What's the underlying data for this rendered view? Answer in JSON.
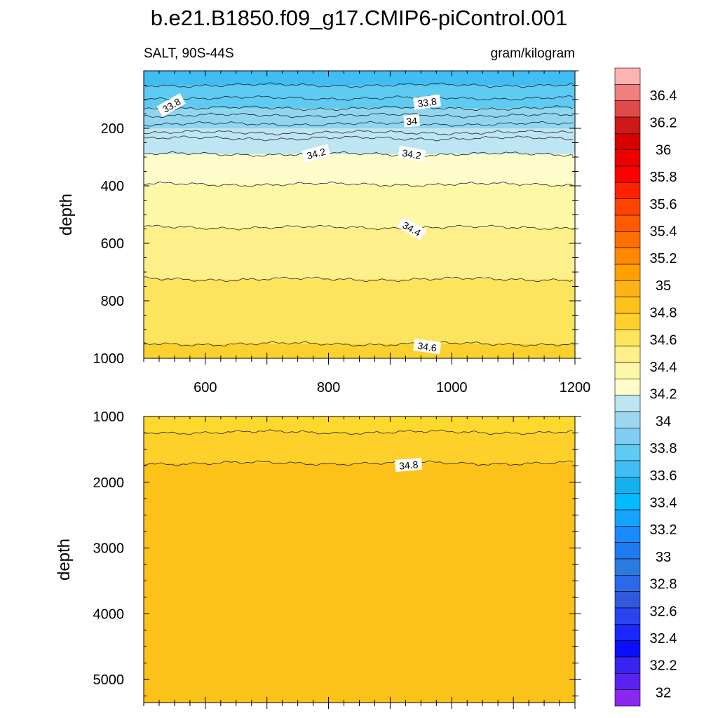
{
  "title": "b.e21.B1850.f09_g17.CMIP6-piControl.001",
  "variable_label": "SALT, 90S-44S",
  "units_label": "gram/kilogram",
  "chart_data": [
    {
      "type": "contour",
      "panel": "upper",
      "ylabel": "depth",
      "xlim": [
        500,
        1200
      ],
      "ylim": [
        0,
        1000
      ],
      "y_reversed": true,
      "x_ticks": [
        600,
        800,
        1000,
        1200
      ],
      "y_ticks": [
        200,
        400,
        600,
        800,
        1000
      ],
      "bands": [
        {
          "y0": 0,
          "y1": 50,
          "color": "#40bdf3"
        },
        {
          "y0": 50,
          "y1": 130,
          "color": "#5fcaf2"
        },
        {
          "y0": 130,
          "y1": 200,
          "color": "#91d6f0"
        },
        {
          "y0": 200,
          "y1": 290,
          "color": "#bde5f2"
        },
        {
          "y0": 290,
          "y1": 395,
          "color": "#fefccb"
        },
        {
          "y0": 395,
          "y1": 545,
          "color": "#fdf8a7"
        },
        {
          "y0": 545,
          "y1": 725,
          "color": "#fdf08a"
        },
        {
          "y0": 725,
          "y1": 950,
          "color": "#fde45d"
        },
        {
          "y0": 950,
          "y1": 1000,
          "color": "#fbd22d"
        }
      ],
      "contour_depths": [
        50,
        95,
        130,
        155,
        185,
        215,
        235,
        290,
        395,
        545,
        725,
        950
      ],
      "contour_labels": [
        {
          "text": "33.8",
          "x": 545,
          "y": 120,
          "angle": -30
        },
        {
          "text": "33.8",
          "x": 960,
          "y": 110,
          "angle": -8
        },
        {
          "text": "34",
          "x": 935,
          "y": 175,
          "angle": -5
        },
        {
          "text": "34.2",
          "x": 780,
          "y": 288,
          "angle": -15
        },
        {
          "text": "34.2",
          "x": 935,
          "y": 290,
          "angle": 10
        },
        {
          "text": "34.4",
          "x": 935,
          "y": 550,
          "angle": 30
        },
        {
          "text": "34.6",
          "x": 960,
          "y": 960,
          "angle": 8
        }
      ]
    },
    {
      "type": "contour",
      "panel": "lower",
      "ylabel": "depth",
      "xlim": [
        500,
        1200
      ],
      "ylim": [
        1000,
        5350
      ],
      "y_reversed": true,
      "y_ticks": [
        1000,
        2000,
        3000,
        4000,
        5000
      ],
      "bands": [
        {
          "y0": 1000,
          "y1": 1240,
          "color": "#fdd92d"
        },
        {
          "y0": 1240,
          "y1": 1710,
          "color": "#fdd12a"
        },
        {
          "y0": 1710,
          "y1": 5350,
          "color": "#fcc21a"
        }
      ],
      "contour_depths": [
        1240,
        1710
      ],
      "contour_labels": [
        {
          "text": "34.8",
          "x": 930,
          "y": 1740,
          "angle": -5
        }
      ]
    }
  ],
  "colorbar": {
    "labels": [
      "36.4",
      "36.2",
      "36",
      "35.8",
      "35.6",
      "35.4",
      "35.2",
      "35",
      "34.8",
      "34.6",
      "34.4",
      "34.2",
      "34",
      "33.8",
      "33.6",
      "33.4",
      "33.2",
      "33",
      "32.8",
      "32.6",
      "32.4",
      "32.2",
      "32"
    ],
    "colors": [
      "#fbb4b4",
      "#f07f7f",
      "#e04a4a",
      "#d01818",
      "#d80000",
      "#ee0000",
      "#ff0000",
      "#ff2200",
      "#ff4400",
      "#ff5a00",
      "#ff7000",
      "#ff8800",
      "#ffa000",
      "#fdb316",
      "#fcc21a",
      "#fdd12a",
      "#fde45d",
      "#fdf08a",
      "#fdf8a7",
      "#fefccb",
      "#bde5f2",
      "#9dd7ef",
      "#7fcdf0",
      "#5fcaf2",
      "#40bdf3",
      "#15b0ee",
      "#00bbff",
      "#14a3ff",
      "#1a8bff",
      "#1f7af0",
      "#2a7be0",
      "#2a6aea",
      "#3258e0",
      "#2a44f0",
      "#1a28ff",
      "#0a10ff",
      "#3a22f0",
      "#5a22f0",
      "#8a28f0"
    ]
  }
}
